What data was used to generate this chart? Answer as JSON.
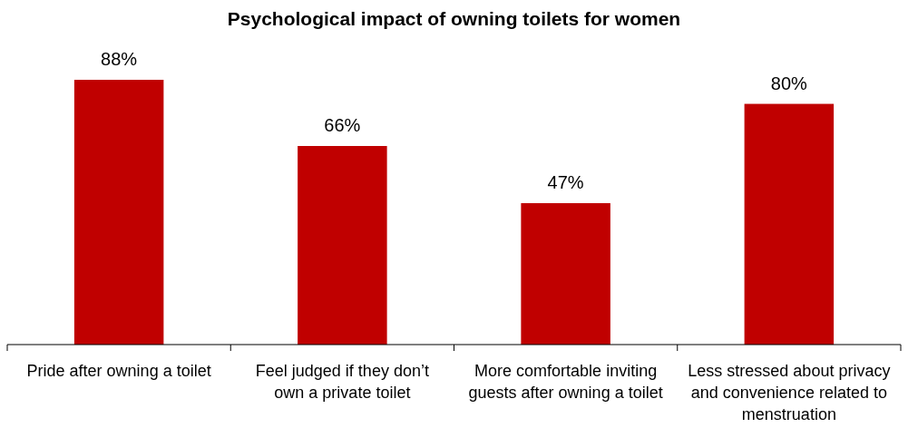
{
  "chart_data": {
    "type": "bar",
    "title": "Psychological impact of owning toilets for women",
    "categories": [
      "Pride after owning a toilet",
      "Feel judged if they don’t own a private toilet",
      "More comfortable inviting guests after owning a toilet",
      "Less stressed about privacy and convenience related to menstruation"
    ],
    "values": [
      88,
      66,
      47,
      80
    ],
    "value_labels": [
      "88%",
      "66%",
      "47%",
      "80%"
    ],
    "color": "#c00000"
  }
}
